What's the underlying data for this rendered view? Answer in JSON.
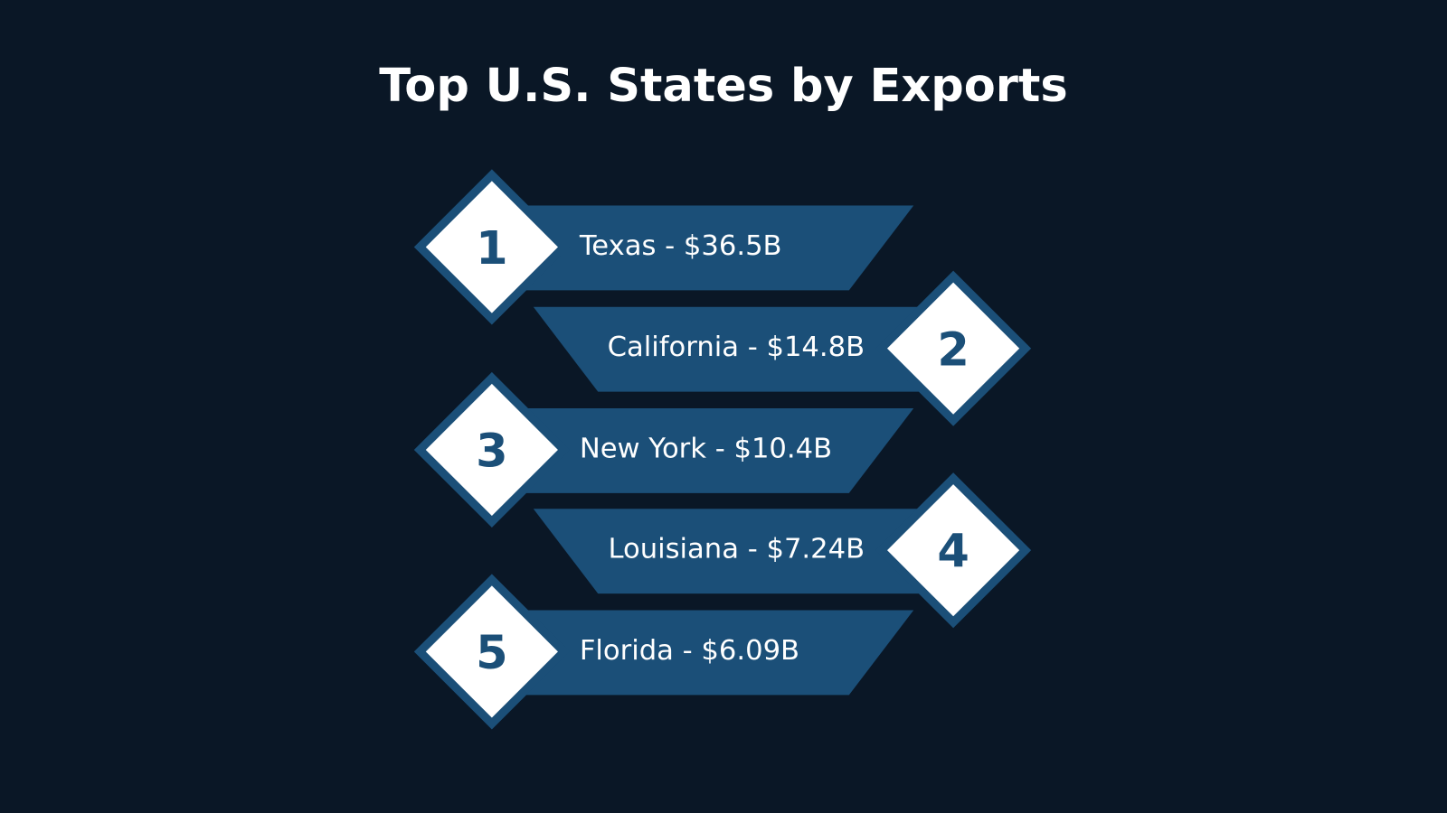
{
  "title": "Top U.S. States by Exports",
  "items": [
    {
      "rank": "1",
      "label": "Texas - $36.5B"
    },
    {
      "rank": "2",
      "label": "California - $14.8B"
    },
    {
      "rank": "3",
      "label": "New York - $10.4B"
    },
    {
      "rank": "4",
      "label": "Louisiana - $7.24B"
    },
    {
      "rank": "5",
      "label": "Florida - $6.09B"
    }
  ]
}
